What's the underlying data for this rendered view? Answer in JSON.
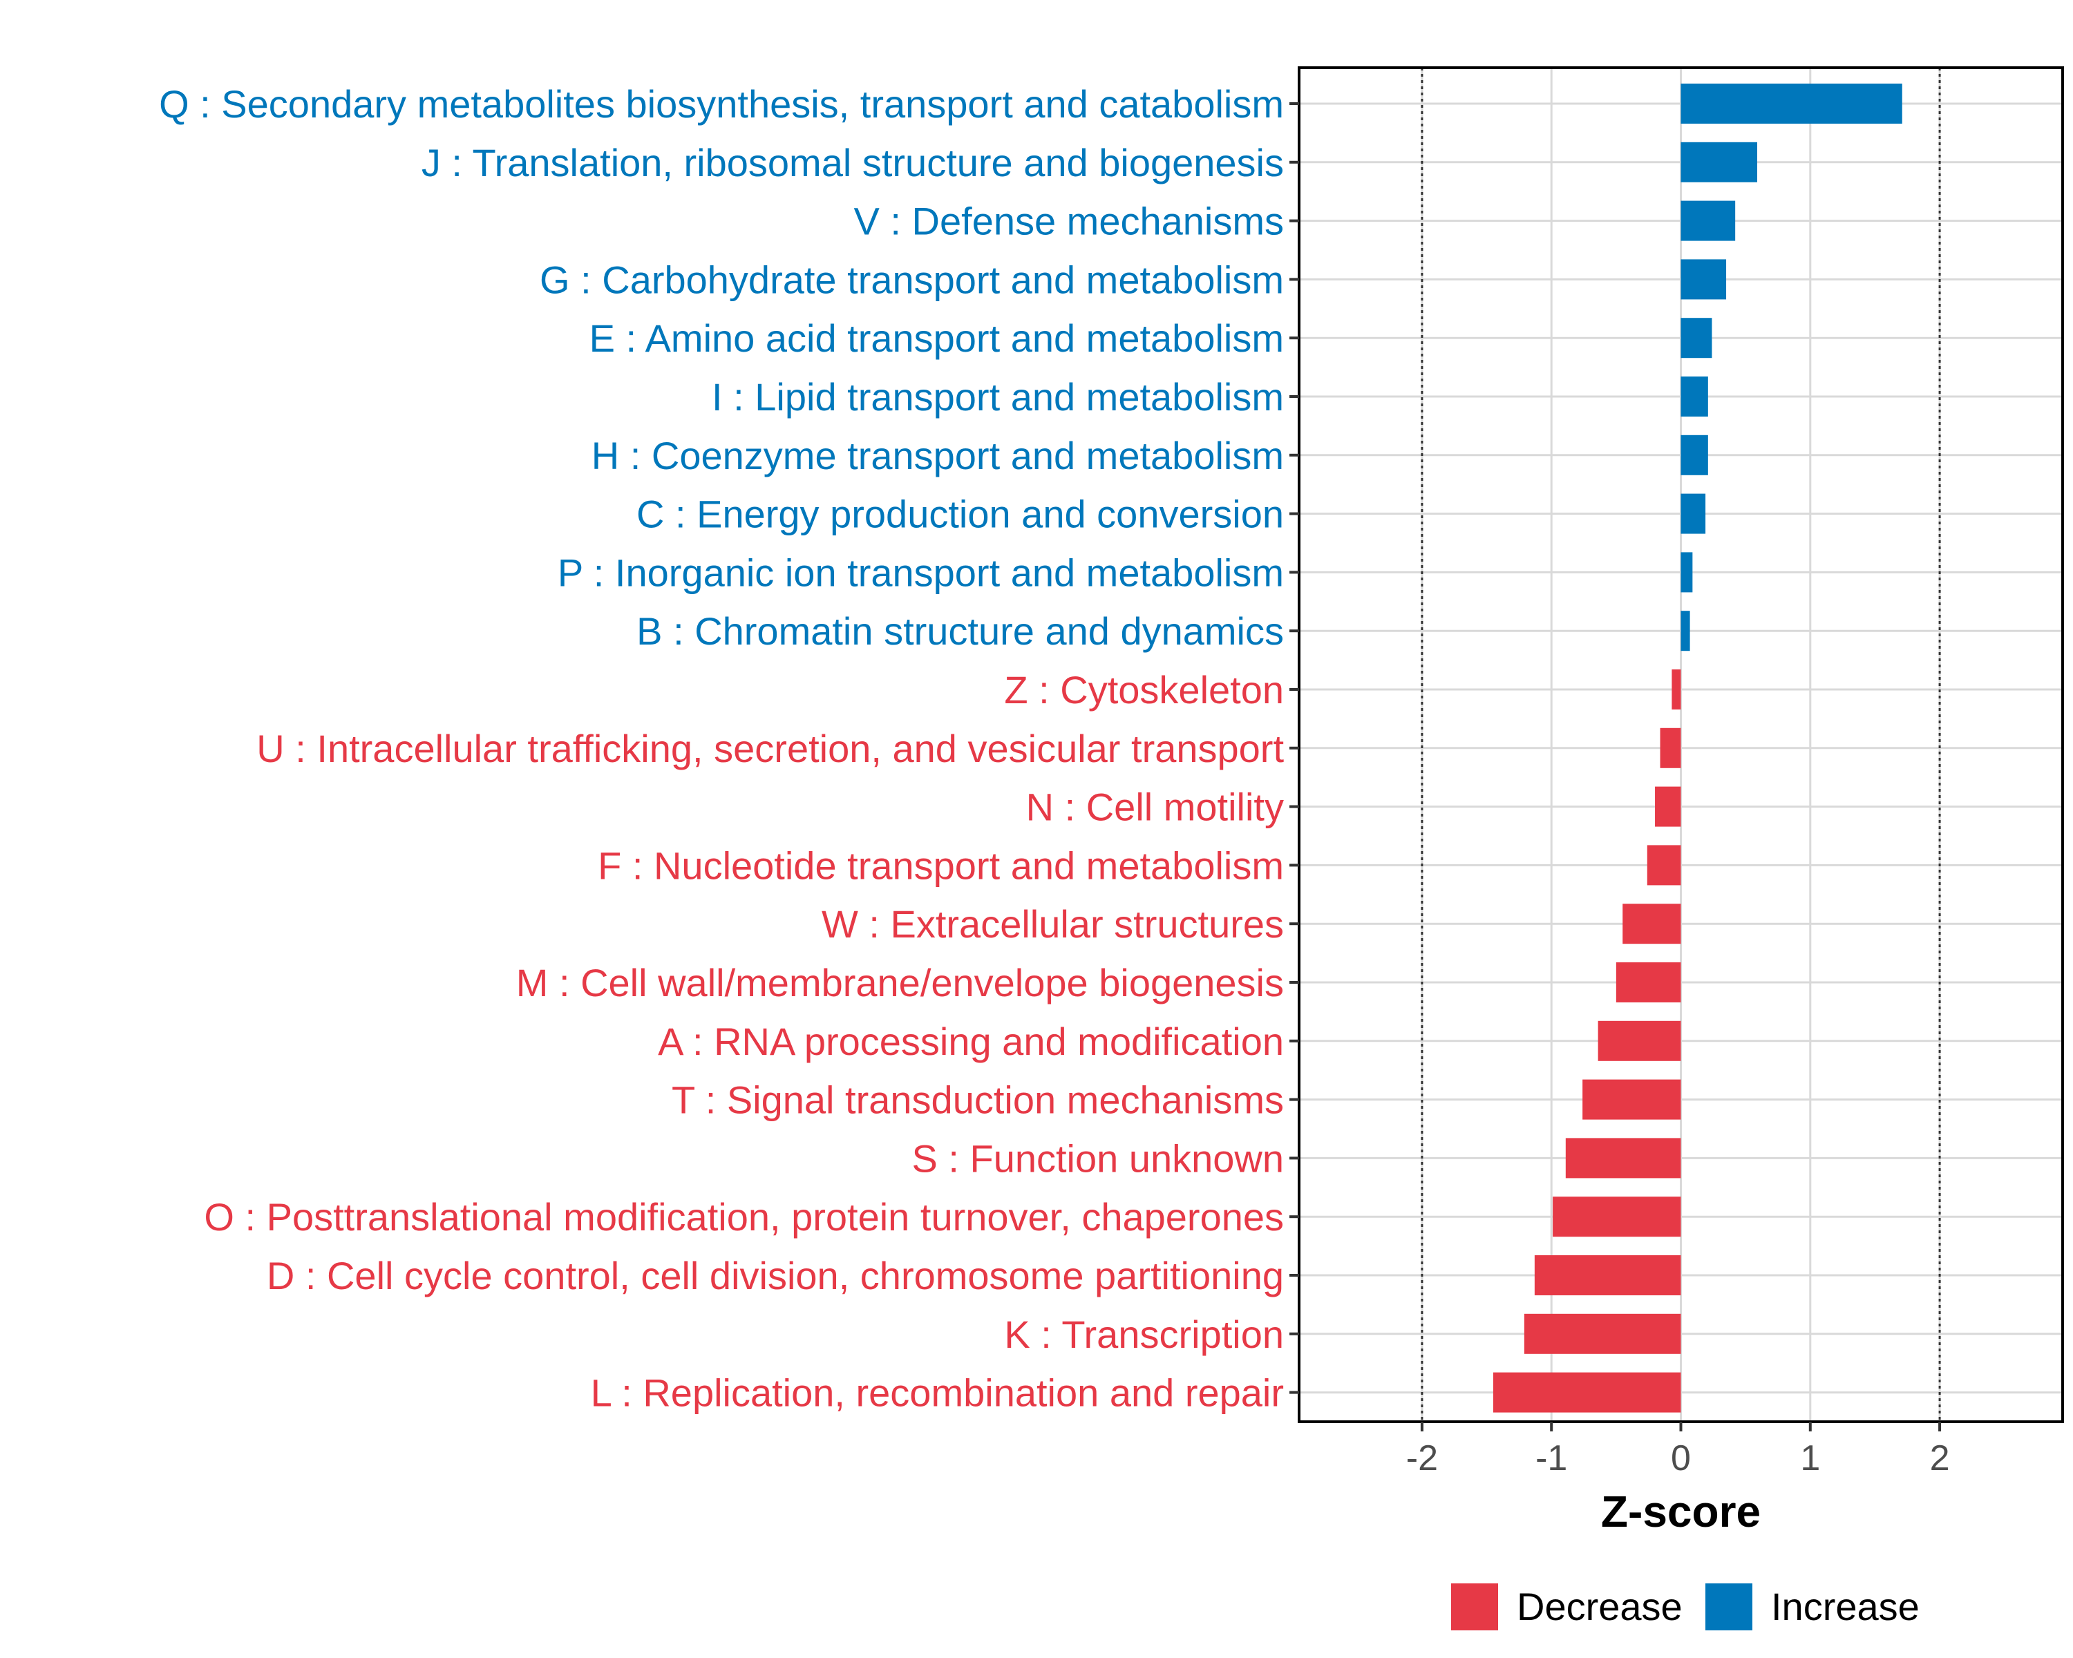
{
  "colors": {
    "increase": "#0077BB",
    "decrease": "#E63946",
    "grid": "#d9d9d9",
    "axis": "#000000",
    "ref_line": "#333333"
  },
  "chart_data": {
    "type": "bar",
    "orientation": "horizontal",
    "xlabel": "Z-score",
    "xlim": [
      -2.95,
      2.95
    ],
    "xticks": [
      -2,
      -1,
      0,
      1,
      2
    ],
    "xtick_labels": [
      "-2",
      "-1",
      "0",
      "1",
      "2"
    ],
    "reference_lines": [
      -2,
      2
    ],
    "grid": true,
    "legend": {
      "position": "bottom",
      "entries": [
        {
          "label": "Decrease",
          "color_key": "decrease"
        },
        {
          "label": "Increase",
          "color_key": "increase"
        }
      ]
    },
    "categories": [
      "Q : Secondary metabolites biosynthesis, transport and catabolism",
      "J : Translation, ribosomal structure and biogenesis",
      "V : Defense mechanisms",
      "G : Carbohydrate transport and metabolism",
      "E : Amino acid transport and metabolism",
      "I : Lipid transport and metabolism",
      "H : Coenzyme transport and metabolism",
      "C : Energy production and conversion",
      "P : Inorganic ion transport and metabolism",
      "B : Chromatin structure and dynamics",
      "Z : Cytoskeleton",
      "U : Intracellular trafficking, secretion, and vesicular transport",
      "N : Cell motility",
      "F : Nucleotide transport and metabolism",
      "W : Extracellular structures",
      "M : Cell wall/membrane/envelope biogenesis",
      "A : RNA processing and modification",
      "T : Signal transduction mechanisms",
      "S : Function unknown",
      "O : Posttranslational modification, protein turnover, chaperones",
      "D : Cell cycle control, cell division, chromosome partitioning",
      "K : Transcription",
      "L : Replication, recombination and repair"
    ],
    "values": [
      1.71,
      0.59,
      0.42,
      0.35,
      0.24,
      0.21,
      0.21,
      0.19,
      0.09,
      0.07,
      -0.07,
      -0.16,
      -0.2,
      -0.26,
      -0.45,
      -0.5,
      -0.64,
      -0.76,
      -0.89,
      -0.99,
      -1.13,
      -1.21,
      -1.45
    ],
    "groups": [
      "Increase",
      "Increase",
      "Increase",
      "Increase",
      "Increase",
      "Increase",
      "Increase",
      "Increase",
      "Increase",
      "Increase",
      "Decrease",
      "Decrease",
      "Decrease",
      "Decrease",
      "Decrease",
      "Decrease",
      "Decrease",
      "Decrease",
      "Decrease",
      "Decrease",
      "Decrease",
      "Decrease",
      "Decrease"
    ]
  }
}
